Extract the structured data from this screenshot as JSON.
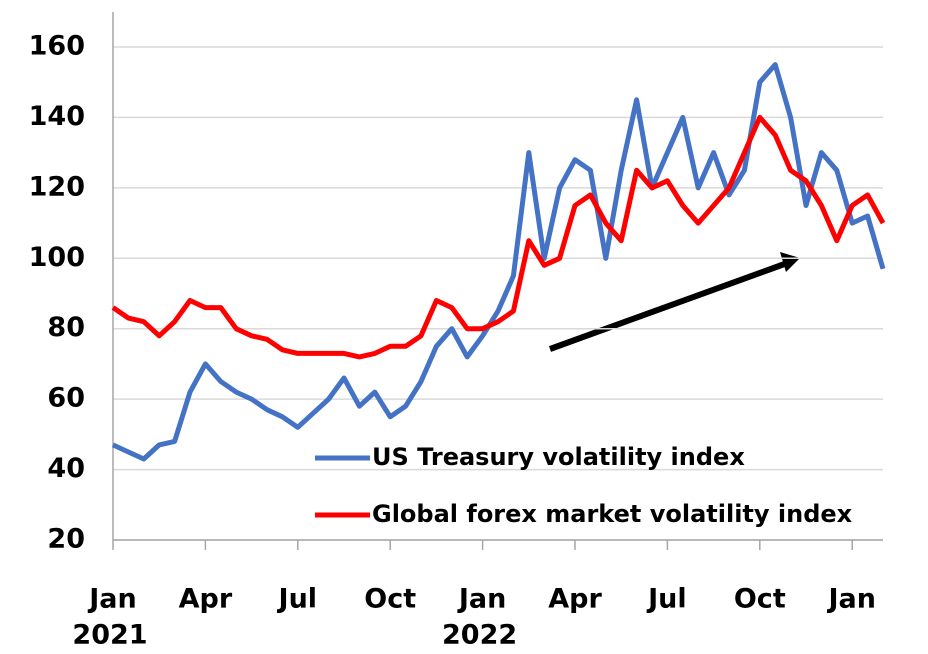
{
  "chart_data": {
    "type": "line",
    "x": [
      0,
      0.5,
      1,
      1.5,
      2,
      2.5,
      3,
      3.5,
      4,
      4.5,
      5,
      5.5,
      6,
      6.5,
      7,
      7.5,
      8,
      8.5,
      9,
      9.5,
      10,
      10.5,
      11,
      11.5,
      12,
      12.5,
      13,
      13.5,
      14,
      14.5,
      15,
      15.5,
      16,
      16.5,
      17,
      17.5,
      18,
      18.5,
      19,
      19.5,
      20,
      20.5,
      21,
      21.5,
      22,
      22.5,
      23,
      23.5,
      24,
      24.5,
      25
    ],
    "series": [
      {
        "name": "US Treasury volatility index",
        "color": "#4472c4",
        "values": [
          47,
          45,
          43,
          47,
          48,
          62,
          70,
          65,
          62,
          60,
          57,
          55,
          52,
          56,
          60,
          66,
          58,
          62,
          55,
          58,
          65,
          75,
          80,
          72,
          78,
          85,
          95,
          130,
          100,
          120,
          128,
          125,
          100,
          125,
          145,
          120,
          130,
          140,
          120,
          130,
          118,
          125,
          150,
          155,
          140,
          115,
          130,
          125,
          110,
          112,
          97
        ]
      },
      {
        "name": "Global forex market volatility index",
        "color": "#ff0000",
        "values": [
          86,
          83,
          82,
          78,
          82,
          88,
          86,
          86,
          80,
          78,
          77,
          74,
          73,
          73,
          73,
          73,
          72,
          73,
          75,
          75,
          78,
          88,
          86,
          80,
          80,
          82,
          85,
          105,
          98,
          100,
          115,
          118,
          110,
          105,
          125,
          120,
          122,
          115,
          110,
          115,
          120,
          130,
          140,
          135,
          125,
          122,
          115,
          105,
          115,
          118,
          110
        ]
      }
    ],
    "xlim": [
      0,
      25
    ],
    "xticks": [
      {
        "value": 0,
        "label": "Jan"
      },
      {
        "value": 3,
        "label": "Apr"
      },
      {
        "value": 6,
        "label": "Jul"
      },
      {
        "value": 9,
        "label": "Oct"
      },
      {
        "value": 12,
        "label": "Jan"
      },
      {
        "value": 15,
        "label": "Apr"
      },
      {
        "value": 18,
        "label": "Jul"
      },
      {
        "value": 21,
        "label": "Oct"
      },
      {
        "value": 24,
        "label": "Jan"
      }
    ],
    "year_labels": [
      {
        "value": 0,
        "label": "2021"
      },
      {
        "value": 12,
        "label": "2022"
      }
    ],
    "ylim": [
      20,
      160
    ],
    "yticks": [
      20,
      40,
      60,
      80,
      100,
      120,
      140,
      160
    ],
    "grid": true,
    "legend": "bottom"
  }
}
